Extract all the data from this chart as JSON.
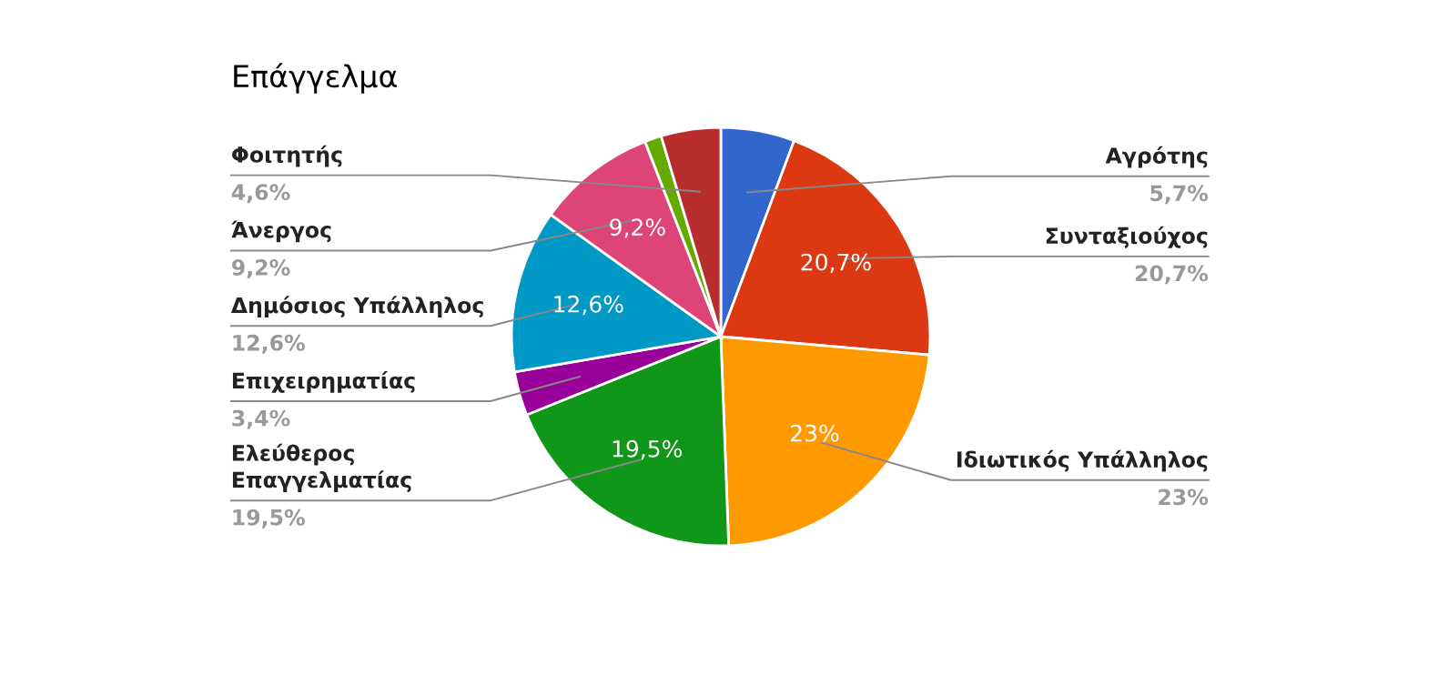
{
  "chart_data": {
    "type": "pie",
    "title": "Επάγγελμα",
    "categories": [
      "Αγρότης",
      "Συνταξιούχος",
      "Ιδιωτικός Υπάλληλος",
      "Ελεύθερος\nΕπαγγελματίας",
      "Επιχειρηματίας",
      "Δημόσιος Υπάλληλος",
      "Άνεργος",
      null,
      "Φοιτητής"
    ],
    "values": [
      5.7,
      20.7,
      23,
      19.5,
      3.4,
      12.6,
      9.2,
      1.3,
      4.6
    ],
    "value_labels": [
      "5,7%",
      "20,7%",
      "23%",
      "19,5%",
      "3,4%",
      "12,6%",
      "9,2%",
      null,
      "4,6%"
    ],
    "colors": [
      "#3366cc",
      "#dc3912",
      "#ff9900",
      "#109618",
      "#990099",
      "#0099c6",
      "#dd4477",
      "#66aa00",
      "#b82e2e"
    ]
  }
}
